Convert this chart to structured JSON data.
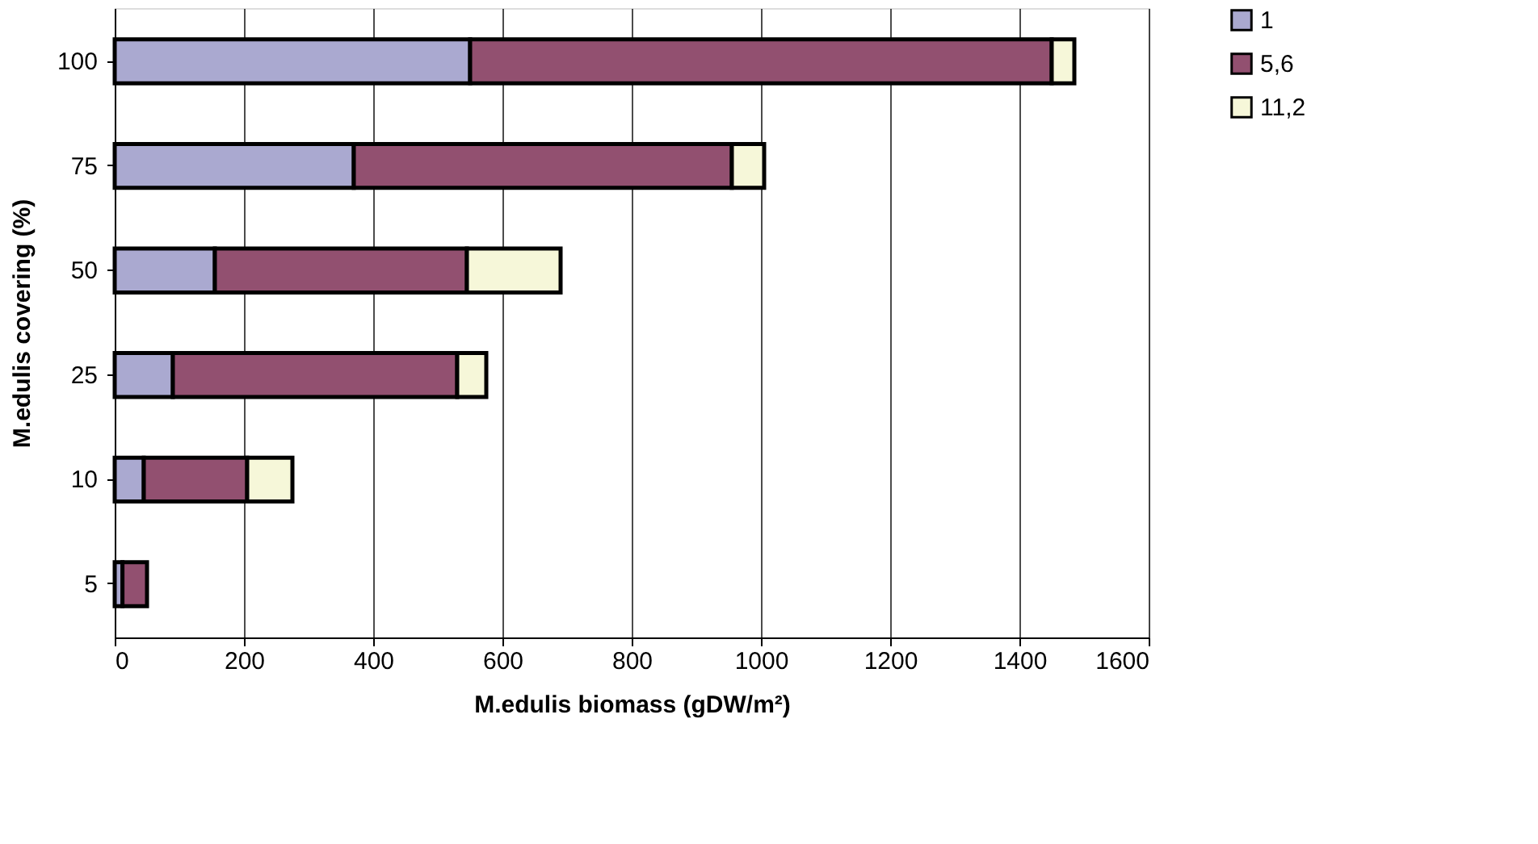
{
  "chart_data": {
    "type": "bar",
    "orientation": "horizontal",
    "stacked": true,
    "categories": [
      "100",
      "75",
      "50",
      "25",
      "10",
      "5"
    ],
    "series": [
      {
        "name": "1",
        "color": "#aaa9d0",
        "values": [
          550,
          370,
          155,
          90,
          45,
          12
        ]
      },
      {
        "name": "5,6",
        "color": "#925070",
        "values": [
          900,
          585,
          390,
          440,
          160,
          38
        ]
      },
      {
        "name": "11,2",
        "color": "#f6f7d9",
        "values": [
          35,
          50,
          145,
          45,
          70,
          null
        ]
      }
    ],
    "xlabel": "M.edulis biomass (gDW/m²)",
    "ylabel": "M.edulis covering (%)",
    "xlim": [
      0,
      1600
    ],
    "xticks": [
      0,
      200,
      400,
      600,
      800,
      1000,
      1200,
      1400,
      1600
    ],
    "grid": "x",
    "legend": "right"
  }
}
